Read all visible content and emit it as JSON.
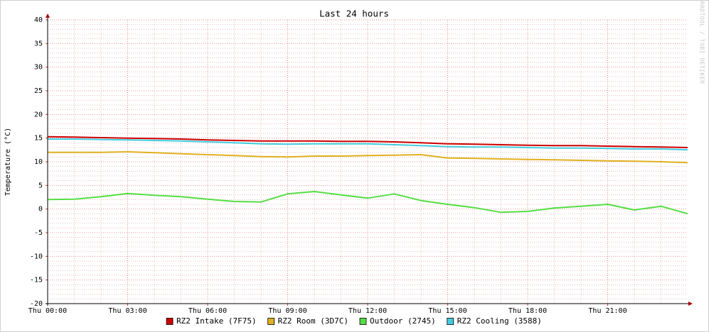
{
  "chart_data": {
    "type": "line",
    "title": "Last 24 hours",
    "y_label": "Temperature (°C)",
    "side_text": "RRDTOOL / TOBI OETIKER",
    "x": [
      0,
      1,
      2,
      3,
      4,
      5,
      6,
      7,
      8,
      9,
      10,
      11,
      12,
      13,
      14,
      15,
      16,
      17,
      18,
      19,
      20,
      21,
      22,
      23,
      24
    ],
    "xlim": [
      0,
      24
    ],
    "xticks": [
      {
        "value": 0,
        "label": "Thu 00:00"
      },
      {
        "value": 3,
        "label": "Thu 03:00"
      },
      {
        "value": 6,
        "label": "Thu 06:00"
      },
      {
        "value": 9,
        "label": "Thu 09:00"
      },
      {
        "value": 12,
        "label": "Thu 12:00"
      },
      {
        "value": 15,
        "label": "Thu 15:00"
      },
      {
        "value": 18,
        "label": "Thu 18:00"
      },
      {
        "value": 21,
        "label": "Thu 21:00"
      }
    ],
    "ylim": [
      -20,
      40
    ],
    "yticks": [
      -20,
      -15,
      -10,
      -5,
      0,
      5,
      10,
      15,
      20,
      25,
      30,
      35,
      40
    ],
    "grid": true,
    "legend": "bottom",
    "series": [
      {
        "name": "RZ2 Intake (7F75)",
        "color": "#cc0000",
        "values": [
          15.3,
          15.2,
          15.1,
          15.0,
          14.9,
          14.8,
          14.6,
          14.5,
          14.4,
          14.4,
          14.4,
          14.3,
          14.3,
          14.2,
          14.0,
          13.8,
          13.7,
          13.6,
          13.5,
          13.4,
          13.4,
          13.3,
          13.2,
          13.1,
          13.0
        ]
      },
      {
        "name": "RZ2 Room (3D7C)",
        "color": "#e0b020",
        "values": [
          12.0,
          12.0,
          12.0,
          12.1,
          11.9,
          11.7,
          11.5,
          11.3,
          11.1,
          11.0,
          11.2,
          11.2,
          11.3,
          11.4,
          11.5,
          10.8,
          10.7,
          10.6,
          10.5,
          10.4,
          10.3,
          10.2,
          10.1,
          10.0,
          9.8
        ]
      },
      {
        "name": "Outdoor (2745)",
        "color": "#55dd44",
        "values": [
          2.0,
          2.1,
          2.6,
          3.3,
          2.9,
          2.6,
          2.1,
          1.6,
          1.5,
          3.2,
          3.7,
          3.0,
          2.3,
          3.2,
          1.8,
          1.0,
          0.3,
          -0.7,
          -0.5,
          0.2,
          0.6,
          1.0,
          -0.2,
          0.6,
          -1.0
        ]
      },
      {
        "name": "RZ2 Cooling (3588)",
        "color": "#44ccdd",
        "values": [
          14.8,
          14.8,
          14.7,
          14.6,
          14.5,
          14.4,
          14.2,
          14.0,
          13.8,
          13.7,
          13.8,
          13.8,
          13.8,
          13.6,
          13.4,
          13.2,
          13.1,
          13.1,
          13.0,
          12.9,
          12.9,
          12.8,
          12.7,
          12.7,
          12.5
        ]
      }
    ]
  }
}
